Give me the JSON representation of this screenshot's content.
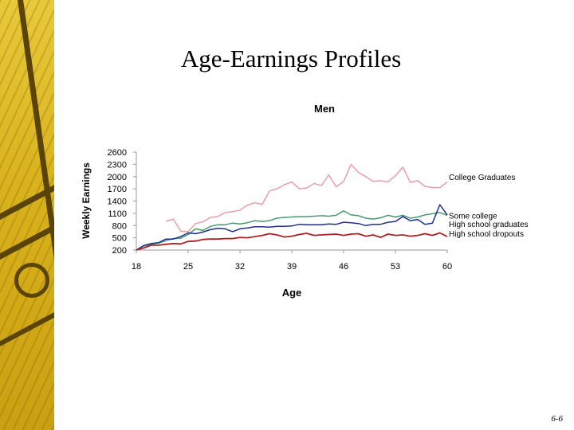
{
  "slide": {
    "title": "Age-Earnings Profiles",
    "number": "6-6"
  },
  "colors": {
    "college": "#e6a0a6",
    "some_college": "#4a9a70",
    "hs_grad": "#1f2f8f",
    "dropout": "#b02020",
    "axis": "#9a9a9a",
    "art_bg": "#d8b21c"
  },
  "chart_data": {
    "type": "line",
    "title": "Men",
    "xlabel": "Age",
    "ylabel": "Weekly Earnings",
    "xlim": [
      18,
      60
    ],
    "ylim": [
      200,
      2600
    ],
    "xticks": [
      18,
      25,
      32,
      39,
      46,
      53,
      60
    ],
    "yticks": [
      200,
      500,
      800,
      1100,
      1400,
      1700,
      2000,
      2300,
      2600
    ],
    "grid": false,
    "legend": "right, inline labels",
    "x": [
      18,
      19,
      20,
      21,
      22,
      23,
      24,
      25,
      26,
      27,
      28,
      29,
      30,
      31,
      32,
      33,
      34,
      35,
      36,
      37,
      38,
      39,
      40,
      41,
      42,
      43,
      44,
      45,
      46,
      47,
      48,
      49,
      50,
      51,
      52,
      53,
      54,
      55,
      56,
      57,
      58,
      59,
      60
    ],
    "series": [
      {
        "name": "College Graduates",
        "key": "college",
        "values": [
          null,
          null,
          null,
          null,
          900,
          960,
          660,
          650,
          850,
          890,
          1000,
          1020,
          1120,
          1140,
          1180,
          1300,
          1360,
          1320,
          1650,
          1700,
          1800,
          1870,
          1700,
          1720,
          1830,
          1780,
          2040,
          1750,
          1880,
          2300,
          2100,
          2000,
          1880,
          1900,
          1870,
          2020,
          2230,
          1860,
          1900,
          1760,
          1730,
          1730,
          1870
        ]
      },
      {
        "name": "Some college",
        "key": "some_college",
        "values": [
          200,
          300,
          340,
          370,
          430,
          480,
          490,
          580,
          720,
          680,
          780,
          820,
          820,
          860,
          840,
          870,
          920,
          900,
          920,
          980,
          1000,
          1010,
          1020,
          1020,
          1030,
          1040,
          1030,
          1050,
          1160,
          1060,
          1040,
          980,
          960,
          990,
          1050,
          1010,
          1050,
          980,
          1010,
          1060,
          1090,
          1120,
          1050
        ]
      },
      {
        "name": "High school graduates",
        "key": "hs_grad",
        "values": [
          200,
          310,
          360,
          380,
          470,
          470,
          530,
          620,
          600,
          640,
          700,
          730,
          720,
          650,
          720,
          740,
          770,
          770,
          760,
          780,
          780,
          790,
          830,
          820,
          820,
          820,
          840,
          830,
          880,
          870,
          850,
          800,
          830,
          830,
          880,
          900,
          1020,
          920,
          950,
          830,
          860,
          1310,
          1060
        ]
      },
      {
        "name": "High school dropouts",
        "key": "dropout",
        "values": [
          200,
          250,
          320,
          320,
          340,
          360,
          350,
          410,
          420,
          460,
          470,
          470,
          480,
          480,
          510,
          500,
          530,
          560,
          600,
          570,
          520,
          540,
          580,
          610,
          560,
          570,
          580,
          590,
          560,
          590,
          600,
          540,
          570,
          510,
          590,
          560,
          570,
          540,
          560,
          600,
          560,
          620,
          530
        ]
      }
    ]
  }
}
